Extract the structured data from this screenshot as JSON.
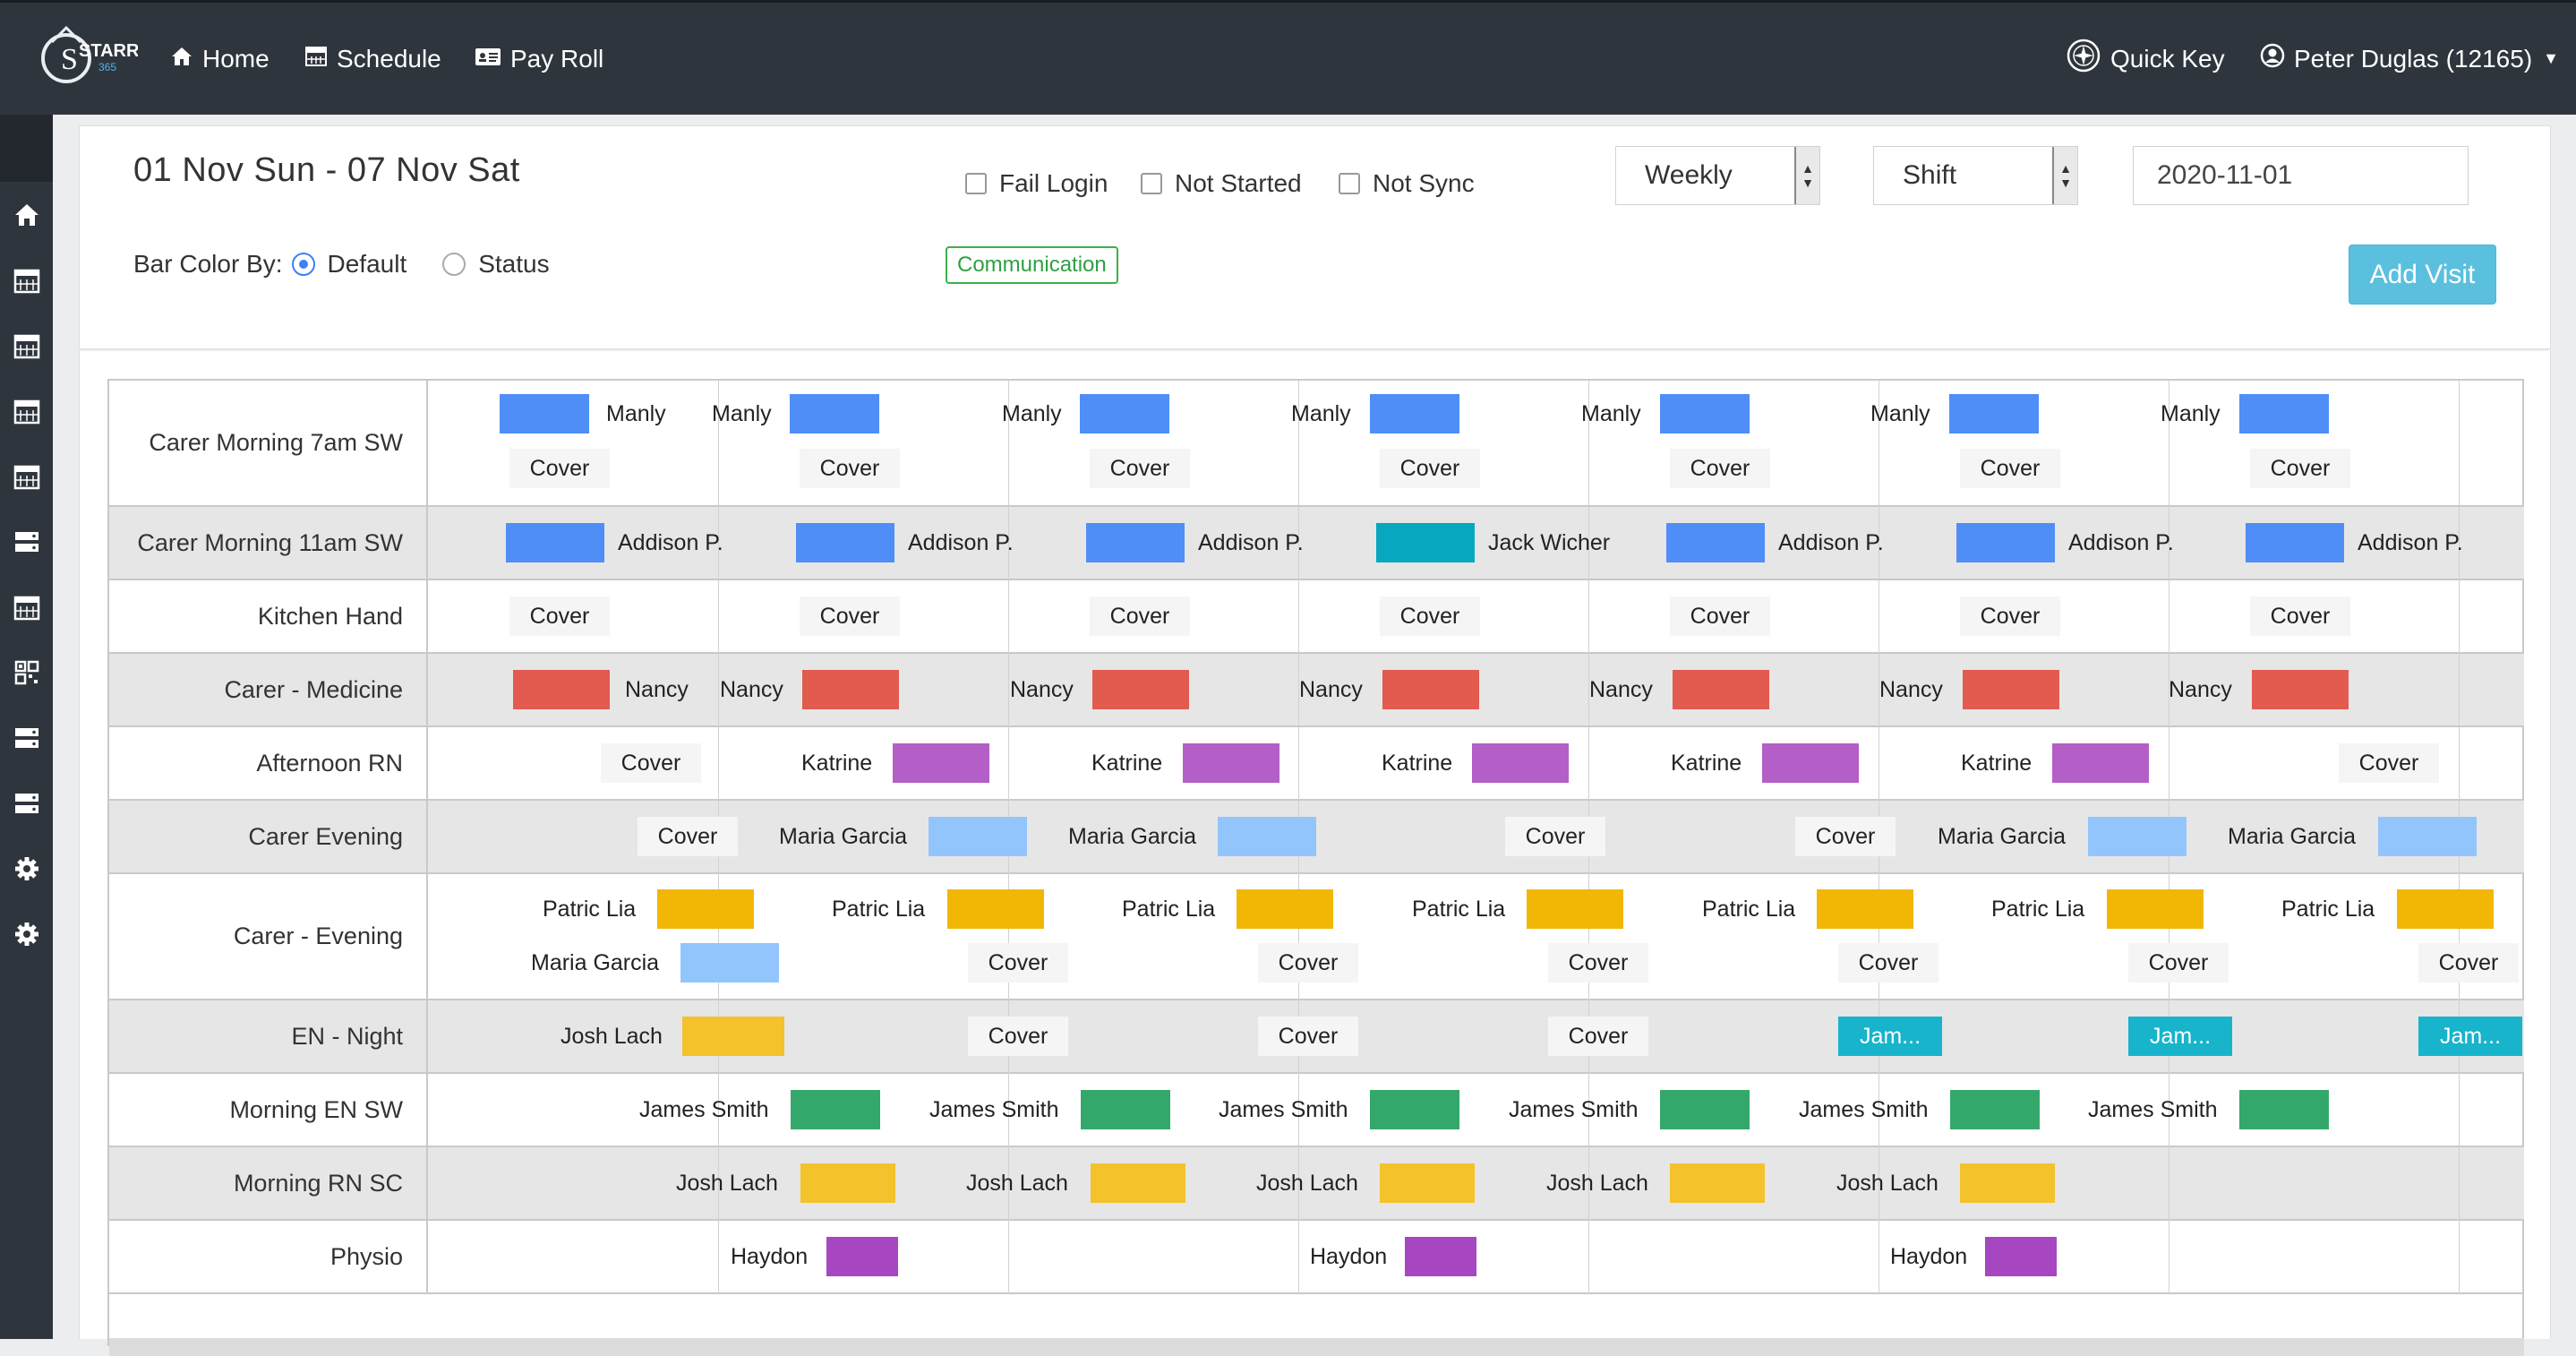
{
  "brand": {
    "name": "STARR",
    "sub": "365"
  },
  "nav": {
    "home": "Home",
    "schedule": "Schedule",
    "payroll": "Pay Roll",
    "quick_key": "Quick Key",
    "user": "Peter Duglas (12165)"
  },
  "header": {
    "title": "01 Nov Sun - 07 Nov Sat",
    "filters": {
      "fail_login": "Fail Login",
      "not_started": "Not Started",
      "not_sync": "Not Sync"
    },
    "view_select": "Weekly",
    "group_select": "Shift",
    "date_value": "2020-11-01",
    "bar_color_label": "Bar Color By:",
    "bar_color_default": "Default",
    "bar_color_status": "Status",
    "communication": "Communication",
    "add_visit": "Add Visit"
  },
  "colors": {
    "blue": "#4f8ef7",
    "lightblue": "#93c5fd",
    "teal": "#06a7bf",
    "red": "#e25b4e",
    "purple": "#b45fc7",
    "yellow": "#f2b705",
    "gold": "#f4c22b",
    "green": "#34a86a",
    "violet": "#a646c0",
    "cyan": "#17b4cc"
  },
  "schedule": {
    "rows": [
      {
        "label": "Carer Morning 7am SW"
      },
      {
        "label": "Carer Morning 11am SW"
      },
      {
        "label": "Kitchen Hand"
      },
      {
        "label": "Carer - Medicine"
      },
      {
        "label": "Afternoon RN"
      },
      {
        "label": "Carer Evening"
      },
      {
        "label": "Carer - Evening"
      },
      {
        "label": "EN - Night"
      },
      {
        "label": "Morning EN SW"
      },
      {
        "label": "Morning RN SC"
      },
      {
        "label": "Physio"
      }
    ],
    "texts": {
      "manly": "Manly",
      "cover": "Cover",
      "addison": "Addison P.",
      "jack": "Jack Wicher",
      "nancy": "Nancy",
      "katrine": "Katrine",
      "maria": "Maria Garcia",
      "patric": "Patric Lia",
      "josh": "Josh Lach",
      "jam": "Jam...",
      "james": "James Smith",
      "haydon": "Haydon"
    }
  }
}
